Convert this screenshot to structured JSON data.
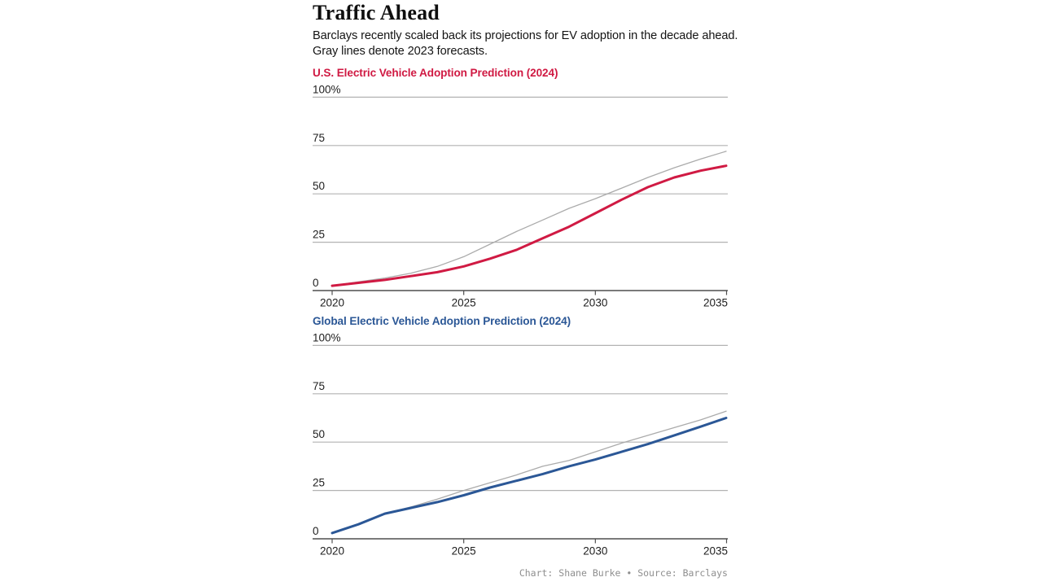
{
  "page": {
    "title": "Traffic Ahead",
    "subtitle_line1": "Barclays recently scaled back its projections for EV adoption in the decade ahead.",
    "subtitle_line2": "Gray lines denote 2023 forecasts.",
    "footer": "Chart: Shane Burke • Source: Barclays"
  },
  "colors": {
    "us_accent": "#d01a43",
    "global_accent": "#2b5796",
    "forecast_gray": "#ababab",
    "gridline": "#b3b3b3",
    "axis": "#4f4f4f",
    "label_text": "#202020"
  },
  "chart_data": [
    {
      "type": "line",
      "title": "U.S. Electric Vehicle Adoption Prediction (2024)",
      "title_color": "#d01a43",
      "x": [
        2020,
        2021,
        2022,
        2023,
        2024,
        2025,
        2026,
        2027,
        2028,
        2029,
        2030,
        2031,
        2032,
        2033,
        2034,
        2035
      ],
      "series": [
        {
          "name": "2023 forecast",
          "color": "#ababab",
          "width": 1.3,
          "values": [
            2.5,
            4.5,
            6.5,
            9,
            12.5,
            17.5,
            24,
            30.5,
            36.5,
            42.5,
            47.5,
            53,
            58.5,
            63.5,
            68,
            72
          ]
        },
        {
          "name": "2024 prediction",
          "color": "#d01a43",
          "width": 3,
          "values": [
            2.5,
            4,
            5.5,
            7.5,
            9.5,
            12.5,
            16.5,
            21,
            27,
            33,
            40,
            47,
            53.5,
            58.5,
            62,
            64.5
          ]
        }
      ],
      "ylim": [
        0,
        100
      ],
      "yticks": [
        {
          "v": 100,
          "label": "100%"
        },
        {
          "v": 75,
          "label": "75"
        },
        {
          "v": 50,
          "label": "50"
        },
        {
          "v": 25,
          "label": "25"
        },
        {
          "v": 0,
          "label": "0"
        }
      ],
      "xticks": [
        {
          "v": 2020,
          "label": "2020"
        },
        {
          "v": 2025,
          "label": "2025"
        },
        {
          "v": 2030,
          "label": "2030"
        },
        {
          "v": 2035,
          "label": "2035"
        }
      ],
      "grid": true,
      "legend": "none"
    },
    {
      "type": "line",
      "title": "Global Electric Vehicle Adoption Prediction (2024)",
      "title_color": "#2b5796",
      "x": [
        2020,
        2021,
        2022,
        2023,
        2024,
        2025,
        2026,
        2027,
        2028,
        2029,
        2030,
        2031,
        2032,
        2033,
        2034,
        2035
      ],
      "series": [
        {
          "name": "2023 forecast",
          "color": "#ababab",
          "width": 1.3,
          "values": [
            3,
            7.5,
            13,
            16.5,
            20.5,
            25,
            29,
            33,
            37.5,
            40.5,
            45,
            49.5,
            53.5,
            57.5,
            61.5,
            66
          ]
        },
        {
          "name": "2024 prediction",
          "color": "#2b5796",
          "width": 3,
          "values": [
            3,
            7.5,
            13,
            16,
            19,
            22.5,
            26.5,
            30,
            33.5,
            37.5,
            41,
            45,
            49,
            53.5,
            58,
            62.5
          ]
        }
      ],
      "ylim": [
        0,
        100
      ],
      "yticks": [
        {
          "v": 100,
          "label": "100%"
        },
        {
          "v": 75,
          "label": "75"
        },
        {
          "v": 50,
          "label": "50"
        },
        {
          "v": 25,
          "label": "25"
        },
        {
          "v": 0,
          "label": "0"
        }
      ],
      "xticks": [
        {
          "v": 2020,
          "label": "2020"
        },
        {
          "v": 2025,
          "label": "2025"
        },
        {
          "v": 2030,
          "label": "2030"
        },
        {
          "v": 2035,
          "label": "2035"
        }
      ],
      "grid": true,
      "legend": "none"
    }
  ]
}
